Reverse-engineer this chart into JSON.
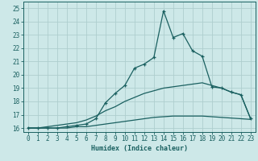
{
  "xlabel": "Humidex (Indice chaleur)",
  "background_color": "#cde8e8",
  "grid_color": "#aecece",
  "line_color": "#1a6060",
  "xlim": [
    -0.5,
    23.5
  ],
  "ylim": [
    15.7,
    25.5
  ],
  "xticks": [
    0,
    1,
    2,
    3,
    4,
    5,
    6,
    7,
    8,
    9,
    10,
    11,
    12,
    13,
    14,
    15,
    16,
    17,
    18,
    19,
    20,
    21,
    22,
    23
  ],
  "yticks": [
    16,
    17,
    18,
    19,
    20,
    21,
    22,
    23,
    24,
    25
  ],
  "main_x": [
    0,
    1,
    2,
    3,
    4,
    5,
    6,
    7,
    8,
    9,
    10,
    11,
    12,
    13,
    14,
    15,
    16,
    17,
    18,
    19,
    20,
    21,
    22,
    23
  ],
  "main_y": [
    16.0,
    16.0,
    16.0,
    16.0,
    16.1,
    16.2,
    16.3,
    16.7,
    17.9,
    18.6,
    19.2,
    20.5,
    20.8,
    21.3,
    24.8,
    22.8,
    23.1,
    21.8,
    21.4,
    19.1,
    19.0,
    18.7,
    18.5,
    16.7
  ],
  "line2_x": [
    0,
    1,
    2,
    3,
    4,
    5,
    6,
    7,
    8,
    9,
    10,
    11,
    12,
    13,
    14,
    15,
    16,
    17,
    18,
    19,
    20,
    21,
    22,
    23
  ],
  "line2_y": [
    16.0,
    16.0,
    16.1,
    16.2,
    16.3,
    16.4,
    16.6,
    16.9,
    17.3,
    17.6,
    18.0,
    18.3,
    18.6,
    18.8,
    19.0,
    19.1,
    19.2,
    19.3,
    19.4,
    19.2,
    19.0,
    18.7,
    18.5,
    16.7
  ],
  "line3_x": [
    0,
    1,
    2,
    3,
    4,
    5,
    6,
    7,
    8,
    9,
    10,
    11,
    12,
    13,
    14,
    15,
    16,
    17,
    18,
    19,
    20,
    21,
    22,
    23
  ],
  "line3_y": [
    16.0,
    16.0,
    16.0,
    16.0,
    16.0,
    16.1,
    16.1,
    16.2,
    16.3,
    16.4,
    16.5,
    16.6,
    16.7,
    16.8,
    16.85,
    16.9,
    16.9,
    16.9,
    16.9,
    16.85,
    16.8,
    16.75,
    16.7,
    16.65
  ]
}
